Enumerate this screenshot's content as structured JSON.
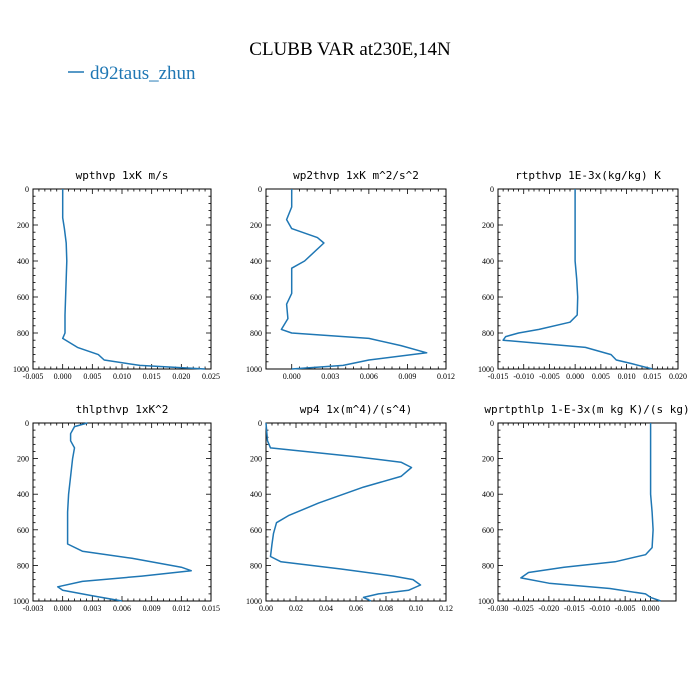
{
  "figure": {
    "title": "CLUBB VAR at230E,14N",
    "legend": [
      {
        "name": "d92taus_zhun",
        "color": "#1f77b4"
      }
    ]
  },
  "chart_data": [
    {
      "type": "line",
      "title": "wpthvp  1xK m/s",
      "xlim": [
        -0.005,
        0.025
      ],
      "ylim": [
        1000,
        0
      ],
      "xticks": [
        "-0.005",
        "0.000",
        "0.005",
        "0.010",
        "0.015",
        "0.020",
        "0.025"
      ],
      "xtick_values": [
        -0.005,
        0,
        0.005,
        0.01,
        0.015,
        0.02,
        0.025
      ],
      "yticks": [
        "0",
        "200",
        "400",
        "600",
        "800",
        "1000"
      ],
      "ytick_values": [
        0,
        200,
        400,
        600,
        800,
        1000
      ],
      "series": [
        {
          "color": "#1f77b4",
          "points": [
            [
              0.0,
              0
            ],
            [
              0.0,
              140
            ],
            [
              0.0,
              160
            ],
            [
              0.0003,
              220
            ],
            [
              0.0006,
              300
            ],
            [
              0.0007,
              400
            ],
            [
              0.0006,
              500
            ],
            [
              0.0005,
              600
            ],
            [
              0.0004,
              700
            ],
            [
              0.0004,
              800
            ],
            [
              0.0,
              830
            ],
            [
              0.0025,
              880
            ],
            [
              0.006,
              920
            ],
            [
              0.007,
              950
            ],
            [
              0.013,
              980
            ],
            [
              0.024,
              1000
            ]
          ]
        }
      ]
    },
    {
      "type": "line",
      "title": "wp2thvp  1xK m^2/s^2",
      "xlim": [
        -0.002,
        0.012
      ],
      "ylim": [
        1000,
        0
      ],
      "xticks": [
        "0.000",
        "0.003",
        "0.006",
        "0.009",
        "0.012"
      ],
      "xtick_values": [
        0,
        0.003,
        0.006,
        0.009,
        0.012
      ],
      "yticks": [
        "0",
        "200",
        "400",
        "600",
        "800",
        "1000"
      ],
      "ytick_values": [
        0,
        200,
        400,
        600,
        800,
        1000
      ],
      "series": [
        {
          "color": "#1f77b4",
          "points": [
            [
              0.0,
              0
            ],
            [
              0.0,
              100
            ],
            [
              -0.0004,
              170
            ],
            [
              0.0,
              220
            ],
            [
              0.002,
              270
            ],
            [
              0.0025,
              300
            ],
            [
              0.001,
              400
            ],
            [
              0.0,
              440
            ],
            [
              0.0,
              520
            ],
            [
              0.0,
              580
            ],
            [
              -0.0004,
              640
            ],
            [
              -0.0003,
              720
            ],
            [
              -0.0008,
              780
            ],
            [
              0.0,
              800
            ],
            [
              0.006,
              830
            ],
            [
              0.0085,
              870
            ],
            [
              0.0105,
              910
            ],
            [
              0.006,
              950
            ],
            [
              0.004,
              980
            ],
            [
              0.0,
              1000
            ]
          ]
        }
      ]
    },
    {
      "type": "line",
      "title": "rtpthvp  1E-3x(kg/kg) K",
      "xlim": [
        -0.015,
        0.02
      ],
      "ylim": [
        1000,
        0
      ],
      "xticks": [
        "-0.015",
        "-0.010",
        "-0.005",
        "0.000",
        "0.005",
        "0.010",
        "0.015",
        "0.020"
      ],
      "xtick_values": [
        -0.015,
        -0.01,
        -0.005,
        0,
        0.005,
        0.01,
        0.015,
        0.02
      ],
      "yticks": [
        "0",
        "200",
        "400",
        "600",
        "800",
        "1000"
      ],
      "ytick_values": [
        0,
        200,
        400,
        600,
        800,
        1000
      ],
      "series": [
        {
          "color": "#1f77b4",
          "points": [
            [
              0.0,
              0
            ],
            [
              0.0,
              200
            ],
            [
              0.0,
              400
            ],
            [
              0.0003,
              500
            ],
            [
              0.0005,
              600
            ],
            [
              0.0004,
              700
            ],
            [
              -0.001,
              740
            ],
            [
              -0.007,
              780
            ],
            [
              -0.011,
              800
            ],
            [
              -0.0135,
              820
            ],
            [
              -0.014,
              840
            ],
            [
              0.002,
              880
            ],
            [
              0.007,
              920
            ],
            [
              0.008,
              950
            ],
            [
              0.011,
              970
            ],
            [
              0.015,
              1000
            ]
          ]
        }
      ]
    },
    {
      "type": "line",
      "title": "thlpthvp  1xK^2",
      "xlim": [
        -0.003,
        0.015
      ],
      "ylim": [
        1000,
        0
      ],
      "xticks": [
        "-0.003",
        "0.000",
        "0.003",
        "0.006",
        "0.009",
        "0.012",
        "0.015"
      ],
      "xtick_values": [
        -0.003,
        0,
        0.003,
        0.006,
        0.009,
        0.012,
        0.015
      ],
      "yticks": [
        "0",
        "200",
        "400",
        "600",
        "800",
        "1000"
      ],
      "ytick_values": [
        0,
        200,
        400,
        600,
        800,
        1000
      ],
      "series": [
        {
          "color": "#1f77b4",
          "points": [
            [
              0.0025,
              0
            ],
            [
              0.0012,
              20
            ],
            [
              0.0008,
              60
            ],
            [
              0.0008,
              100
            ],
            [
              0.0012,
              140
            ],
            [
              0.001,
              200
            ],
            [
              0.0008,
              300
            ],
            [
              0.0006,
              400
            ],
            [
              0.0005,
              500
            ],
            [
              0.0005,
              600
            ],
            [
              0.0005,
              680
            ],
            [
              0.002,
              720
            ],
            [
              0.007,
              760
            ],
            [
              0.012,
              810
            ],
            [
              0.013,
              830
            ],
            [
              0.008,
              860
            ],
            [
              0.002,
              890
            ],
            [
              -0.0005,
              920
            ],
            [
              0.0,
              940
            ],
            [
              0.003,
              970
            ],
            [
              0.005,
              990
            ],
            [
              0.006,
              1000
            ]
          ]
        }
      ]
    },
    {
      "type": "line",
      "title": "wp4  1x(m^4)/(s^4)",
      "xlim": [
        0.0,
        0.12
      ],
      "ylim": [
        1000,
        0
      ],
      "xticks": [
        "0.00",
        "0.02",
        "0.04",
        "0.06",
        "0.08",
        "0.10",
        "0.12"
      ],
      "xtick_values": [
        0,
        0.02,
        0.04,
        0.06,
        0.08,
        0.1,
        0.12
      ],
      "yticks": [
        "0",
        "200",
        "400",
        "600",
        "800",
        "1000"
      ],
      "ytick_values": [
        0,
        200,
        400,
        600,
        800,
        1000
      ],
      "series": [
        {
          "color": "#1f77b4",
          "points": [
            [
              0.0,
              0
            ],
            [
              0.001,
              100
            ],
            [
              0.003,
              140
            ],
            [
              0.06,
              190
            ],
            [
              0.09,
              220
            ],
            [
              0.097,
              250
            ],
            [
              0.09,
              300
            ],
            [
              0.065,
              360
            ],
            [
              0.035,
              450
            ],
            [
              0.015,
              520
            ],
            [
              0.007,
              560
            ],
            [
              0.005,
              620
            ],
            [
              0.004,
              680
            ],
            [
              0.003,
              750
            ],
            [
              0.01,
              780
            ],
            [
              0.05,
              820
            ],
            [
              0.085,
              860
            ],
            [
              0.098,
              880
            ],
            [
              0.103,
              910
            ],
            [
              0.095,
              940
            ],
            [
              0.075,
              960
            ],
            [
              0.065,
              980
            ],
            [
              0.07,
              1000
            ]
          ]
        }
      ]
    },
    {
      "type": "line",
      "title": "wprtpthlp  1-E-3x(m kg K)/(s kg)",
      "xlim": [
        -0.03,
        0.005
      ],
      "ylim": [
        1000,
        0
      ],
      "xticks": [
        "-0.030",
        "-0.025",
        "-0.020",
        "-0.015",
        "-0.010",
        "-0.005",
        "0.000"
      ],
      "xtick_values": [
        -0.03,
        -0.025,
        -0.02,
        -0.015,
        -0.01,
        -0.005,
        0
      ],
      "yticks": [
        "0",
        "200",
        "400",
        "600",
        "800",
        "1000"
      ],
      "ytick_values": [
        0,
        200,
        400,
        600,
        800,
        1000
      ],
      "series": [
        {
          "color": "#1f77b4",
          "points": [
            [
              0.0,
              0
            ],
            [
              0.0,
              200
            ],
            [
              0.0,
              300
            ],
            [
              0.0,
              400
            ],
            [
              0.0003,
              500
            ],
            [
              0.0005,
              600
            ],
            [
              0.0003,
              700
            ],
            [
              -0.001,
              740
            ],
            [
              -0.007,
              780
            ],
            [
              -0.017,
              810
            ],
            [
              -0.024,
              840
            ],
            [
              -0.0255,
              870
            ],
            [
              -0.02,
              900
            ],
            [
              -0.008,
              930
            ],
            [
              -0.001,
              960
            ],
            [
              0.0,
              980
            ],
            [
              0.002,
              1000
            ]
          ]
        }
      ]
    }
  ]
}
